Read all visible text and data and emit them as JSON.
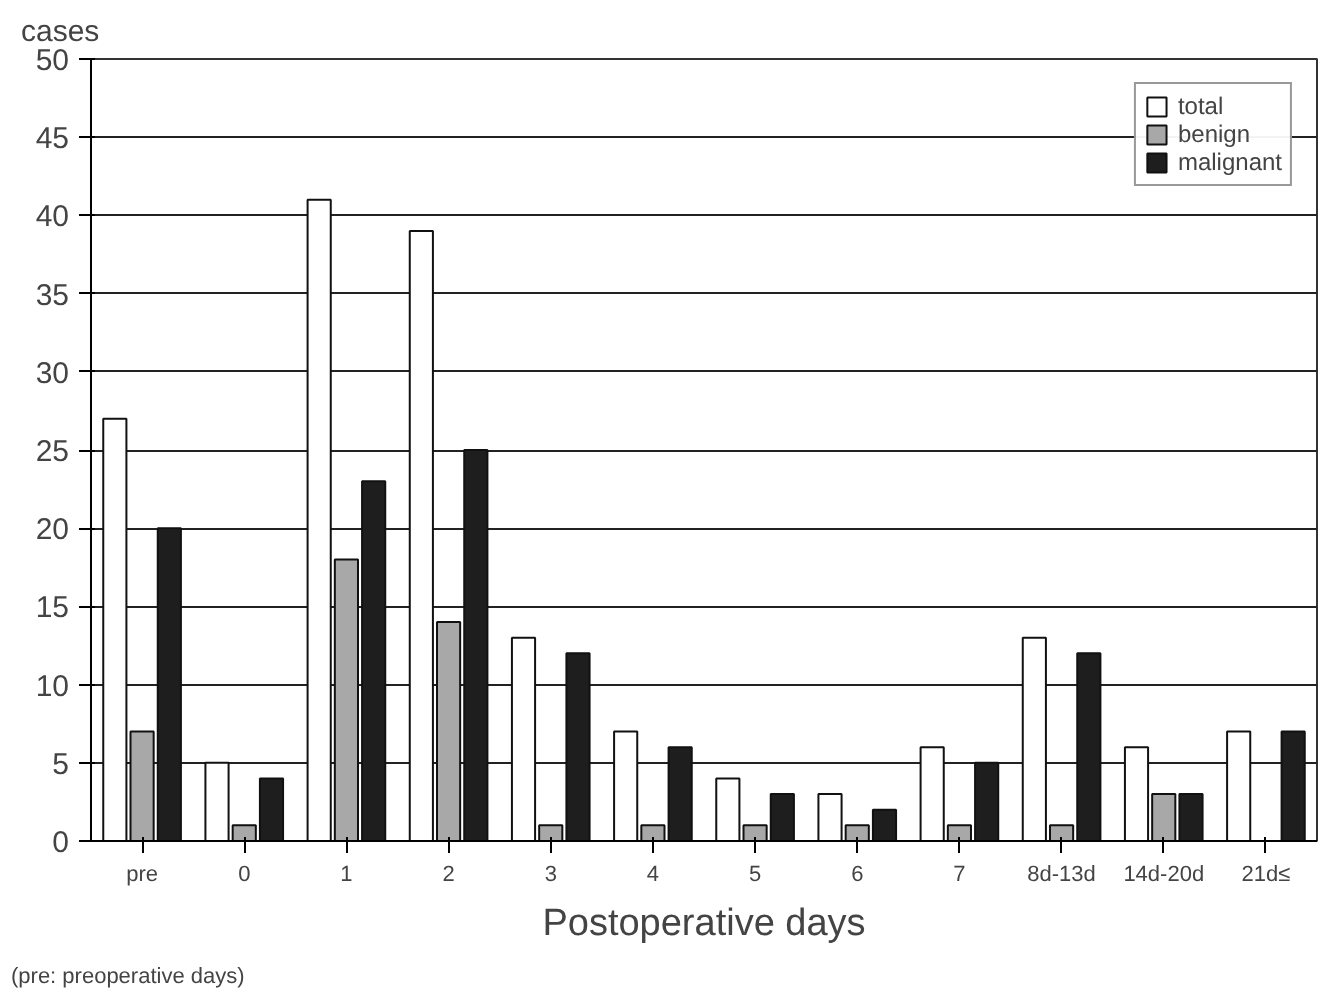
{
  "chart_data": {
    "type": "bar",
    "ylabel": "cases",
    "xlabel": "Postoperative days",
    "annotations": [
      "(pre: preoperative days)"
    ],
    "categories": [
      "pre",
      "0",
      "1",
      "2",
      "3",
      "4",
      "5",
      "6",
      "7",
      "8d-13d",
      "14d-20d",
      "21d≤"
    ],
    "series": [
      {
        "name": "total",
        "color": "#ffffff",
        "values": [
          27,
          5,
          41,
          39,
          13,
          7,
          4,
          3,
          6,
          13,
          6,
          7
        ]
      },
      {
        "name": "benign",
        "color": "#a8a8a8",
        "values": [
          7,
          1,
          18,
          14,
          1,
          1,
          1,
          1,
          1,
          1,
          3,
          0
        ]
      },
      {
        "name": "malignant",
        "color": "#1e1e1e",
        "values": [
          20,
          4,
          23,
          25,
          12,
          6,
          3,
          2,
          5,
          12,
          3,
          7
        ]
      }
    ],
    "ylim": [
      0,
      50
    ],
    "yticks": [
      0,
      5,
      10,
      15,
      20,
      25,
      30,
      35,
      40,
      45,
      50
    ],
    "grid": "y",
    "legend": "top right"
  }
}
